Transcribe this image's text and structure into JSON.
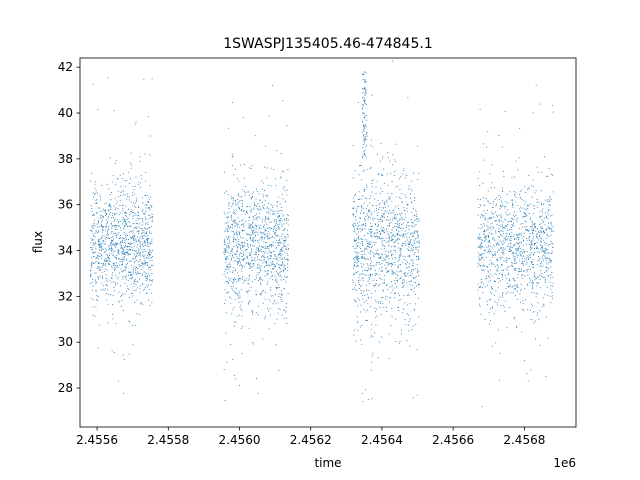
{
  "chart_data": {
    "type": "scatter",
    "title": "1SWASPJ135405.46-474845.1",
    "xlabel": "time",
    "ylabel": "flux",
    "x_offset_label": "1e6",
    "xlim": [
      2455552,
      2456945
    ],
    "ylim": [
      26.3,
      42.4
    ],
    "x_ticks": [
      2455600,
      2455800,
      2456000,
      2456200,
      2456400,
      2456600,
      2456800
    ],
    "x_tick_labels": [
      "2.4556",
      "2.4558",
      "2.4560",
      "2.4562",
      "2.4564",
      "2.4566",
      "2.4568"
    ],
    "y_ticks": [
      28,
      30,
      32,
      34,
      36,
      38,
      40,
      42
    ],
    "y_tick_labels": [
      "28",
      "30",
      "32",
      "34",
      "36",
      "38",
      "40",
      "42"
    ],
    "grid": false,
    "legend": "none",
    "marker_color": "#1f77b4",
    "series": [
      {
        "values_note": "dense photometric time series; clusters summarised below",
        "clusters": [
          {
            "x_range": [
              2455580,
              2455755
            ],
            "core_range": [
              31.5,
              36.5
            ],
            "spread_range": [
              27.2,
              41.7
            ],
            "center": 34.3
          },
          {
            "x_range": [
              2455955,
              2456136
            ],
            "core_range": [
              31.2,
              36.6
            ],
            "spread_range": [
              27.0,
              41.3
            ],
            "center": 34.2
          },
          {
            "x_range": [
              2456316,
              2456504
            ],
            "core_range": [
              31.0,
              37.3
            ],
            "spread_range": [
              26.9,
              41.9
            ],
            "center": 34.2
          },
          {
            "x_range": [
              2456668,
              2456880
            ],
            "core_range": [
              31.5,
              36.6
            ],
            "spread_range": [
              27.0,
              41.7
            ],
            "center": 34.2
          }
        ],
        "flare": {
          "x_range": [
            2456344,
            2456356
          ],
          "y_range": [
            38.0,
            41.9
          ]
        }
      }
    ]
  }
}
